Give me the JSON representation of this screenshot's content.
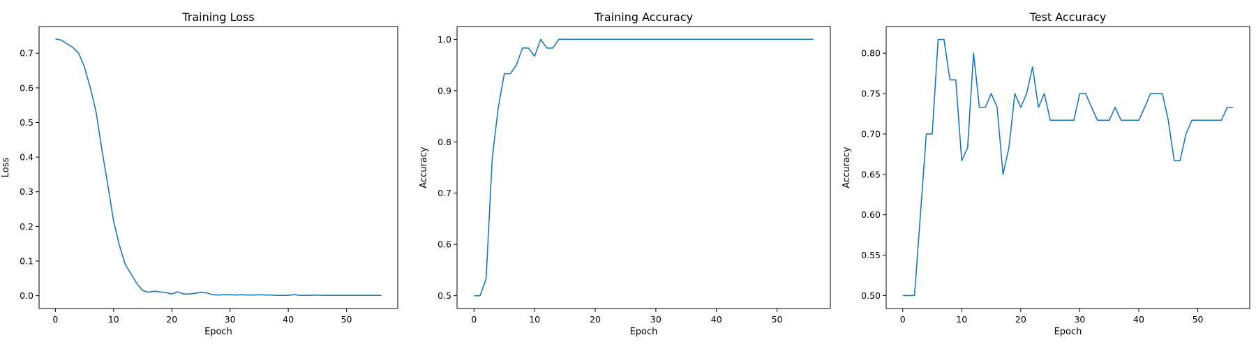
{
  "chart_data": [
    {
      "type": "line",
      "title": "Training Loss",
      "xlabel": "Epoch",
      "ylabel": "Loss",
      "xlim": [
        -2.8,
        58.8
      ],
      "ylim": [
        -0.037,
        0.777
      ],
      "xticks": [
        0,
        10,
        20,
        30,
        40,
        50
      ],
      "yticks": [
        0.0,
        0.1,
        0.2,
        0.3,
        0.4,
        0.5,
        0.6,
        0.7
      ],
      "ytick_decimals": 1,
      "grid": false,
      "color": "#1f77b4",
      "x": [
        0,
        1,
        2,
        3,
        4,
        5,
        6,
        7,
        8,
        9,
        10,
        11,
        12,
        13,
        14,
        15,
        16,
        17,
        18,
        19,
        20,
        21,
        22,
        23,
        24,
        25,
        26,
        27,
        28,
        29,
        30,
        31,
        32,
        33,
        34,
        35,
        36,
        37,
        38,
        39,
        40,
        41,
        42,
        43,
        44,
        45,
        46,
        47,
        48,
        49,
        50,
        51,
        52,
        53,
        54,
        55,
        56
      ],
      "y": [
        0.741,
        0.738,
        0.727,
        0.717,
        0.7,
        0.66,
        0.6,
        0.53,
        0.42,
        0.32,
        0.215,
        0.145,
        0.09,
        0.063,
        0.035,
        0.015,
        0.01,
        0.013,
        0.011,
        0.009,
        0.005,
        0.011,
        0.005,
        0.005,
        0.007,
        0.01,
        0.008,
        0.003,
        0.002,
        0.003,
        0.003,
        0.002,
        0.003,
        0.002,
        0.002,
        0.003,
        0.002,
        0.002,
        0.001,
        0.001,
        0.001,
        0.003,
        0.001,
        0.001,
        0.001,
        0.002,
        0.001,
        0.001,
        0.001,
        0.001,
        0.001,
        0.001,
        0.001,
        0.001,
        0.001,
        0.001,
        0.001
      ]
    },
    {
      "type": "line",
      "title": "Training Accuracy",
      "xlabel": "Epoch",
      "ylabel": "Accuracy",
      "xlim": [
        -2.8,
        58.8
      ],
      "ylim": [
        0.475,
        1.025
      ],
      "xticks": [
        0,
        10,
        20,
        30,
        40,
        50
      ],
      "yticks": [
        0.5,
        0.6,
        0.7,
        0.8,
        0.9,
        1.0
      ],
      "ytick_decimals": 1,
      "grid": false,
      "color": "#1f77b4",
      "x": [
        0,
        1,
        2,
        3,
        4,
        5,
        6,
        7,
        8,
        9,
        10,
        11,
        12,
        13,
        14,
        15,
        16,
        17,
        18,
        19,
        20,
        21,
        22,
        23,
        24,
        25,
        26,
        27,
        28,
        29,
        30,
        31,
        32,
        33,
        34,
        35,
        36,
        37,
        38,
        39,
        40,
        41,
        42,
        43,
        44,
        45,
        46,
        47,
        48,
        49,
        50,
        51,
        52,
        53,
        54,
        55,
        56
      ],
      "y": [
        0.5,
        0.5,
        0.533,
        0.767,
        0.867,
        0.933,
        0.933,
        0.95,
        0.983,
        0.983,
        0.967,
        1.0,
        0.983,
        0.983,
        1.0,
        1.0,
        1.0,
        1.0,
        1.0,
        1.0,
        1.0,
        1.0,
        1.0,
        1.0,
        1.0,
        1.0,
        1.0,
        1.0,
        1.0,
        1.0,
        1.0,
        1.0,
        1.0,
        1.0,
        1.0,
        1.0,
        1.0,
        1.0,
        1.0,
        1.0,
        1.0,
        1.0,
        1.0,
        1.0,
        1.0,
        1.0,
        1.0,
        1.0,
        1.0,
        1.0,
        1.0,
        1.0,
        1.0,
        1.0,
        1.0,
        1.0,
        1.0
      ]
    },
    {
      "type": "line",
      "title": "Test Accuracy",
      "xlabel": "Epoch",
      "ylabel": "Accuracy",
      "xlim": [
        -2.8,
        58.8
      ],
      "ylim": [
        0.484,
        0.833
      ],
      "xticks": [
        0,
        10,
        20,
        30,
        40,
        50
      ],
      "yticks": [
        0.5,
        0.55,
        0.6,
        0.65,
        0.7,
        0.75,
        0.8
      ],
      "ytick_decimals": 2,
      "grid": false,
      "color": "#1f77b4",
      "x": [
        0,
        1,
        2,
        3,
        4,
        5,
        6,
        7,
        8,
        9,
        10,
        11,
        12,
        13,
        14,
        15,
        16,
        17,
        18,
        19,
        20,
        21,
        22,
        23,
        24,
        25,
        26,
        27,
        28,
        29,
        30,
        31,
        32,
        33,
        34,
        35,
        36,
        37,
        38,
        39,
        40,
        41,
        42,
        43,
        44,
        45,
        46,
        47,
        48,
        49,
        50,
        51,
        52,
        53,
        54,
        55,
        56
      ],
      "y": [
        0.5,
        0.5,
        0.5,
        0.6,
        0.7,
        0.7,
        0.817,
        0.817,
        0.767,
        0.767,
        0.667,
        0.683,
        0.8,
        0.733,
        0.733,
        0.75,
        0.733,
        0.65,
        0.683,
        0.75,
        0.733,
        0.75,
        0.783,
        0.733,
        0.75,
        0.717,
        0.717,
        0.717,
        0.717,
        0.717,
        0.75,
        0.75,
        0.733,
        0.717,
        0.717,
        0.717,
        0.733,
        0.717,
        0.717,
        0.717,
        0.717,
        0.733,
        0.75,
        0.75,
        0.75,
        0.717,
        0.667,
        0.667,
        0.7,
        0.717,
        0.717,
        0.717,
        0.717,
        0.717,
        0.717,
        0.733,
        0.733
      ]
    }
  ]
}
